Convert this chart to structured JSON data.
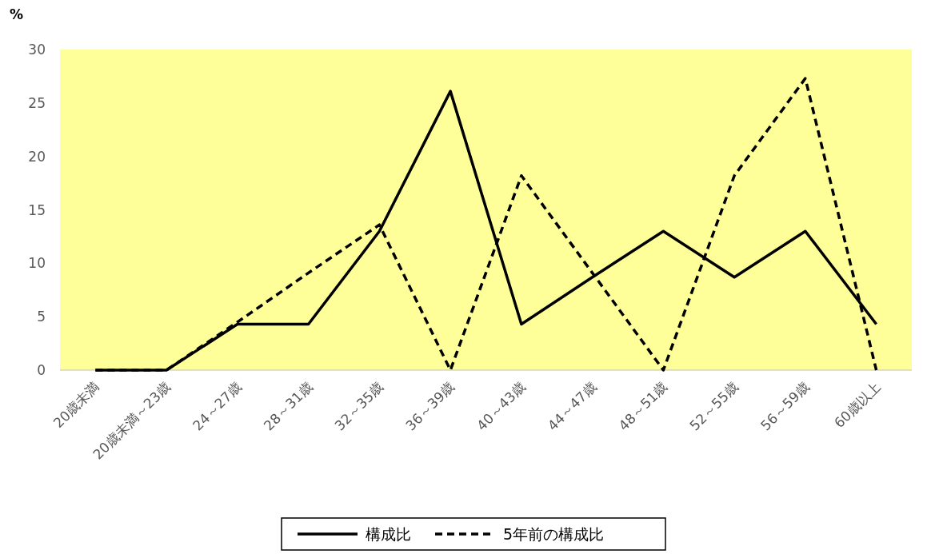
{
  "chart_data": {
    "type": "line",
    "ylabel": "%",
    "categories": [
      "20歳未満",
      "20歳未満～23歳",
      "24～27歳",
      "28～31歳",
      "32～35歳",
      "36～39歳",
      "40～43歳",
      "44～47歳",
      "48～51歳",
      "52～55歳",
      "56～59歳",
      "60歳以上"
    ],
    "series": [
      {
        "name": "構成比",
        "color": "#000000",
        "line_style": "solid",
        "values": [
          0,
          0,
          4.3,
          4.3,
          13.0,
          26.1,
          4.3,
          8.7,
          13.0,
          8.7,
          13.0,
          4.3
        ]
      },
      {
        "name": "5年前の構成比",
        "color": "#000000",
        "line_style": "dashed",
        "values": [
          0,
          0,
          4.5,
          9.1,
          13.6,
          0,
          18.2,
          9.1,
          0,
          18.2,
          27.3,
          0
        ]
      }
    ],
    "ylim": [
      0,
      30
    ],
    "yticks": [
      0,
      5,
      10,
      15,
      20,
      25,
      30
    ],
    "bands": [
      {
        "axis": "y",
        "from": 0,
        "to": 30,
        "color": "#ffff99"
      }
    ],
    "grid": false,
    "marker": "none",
    "legend": "bottom"
  }
}
